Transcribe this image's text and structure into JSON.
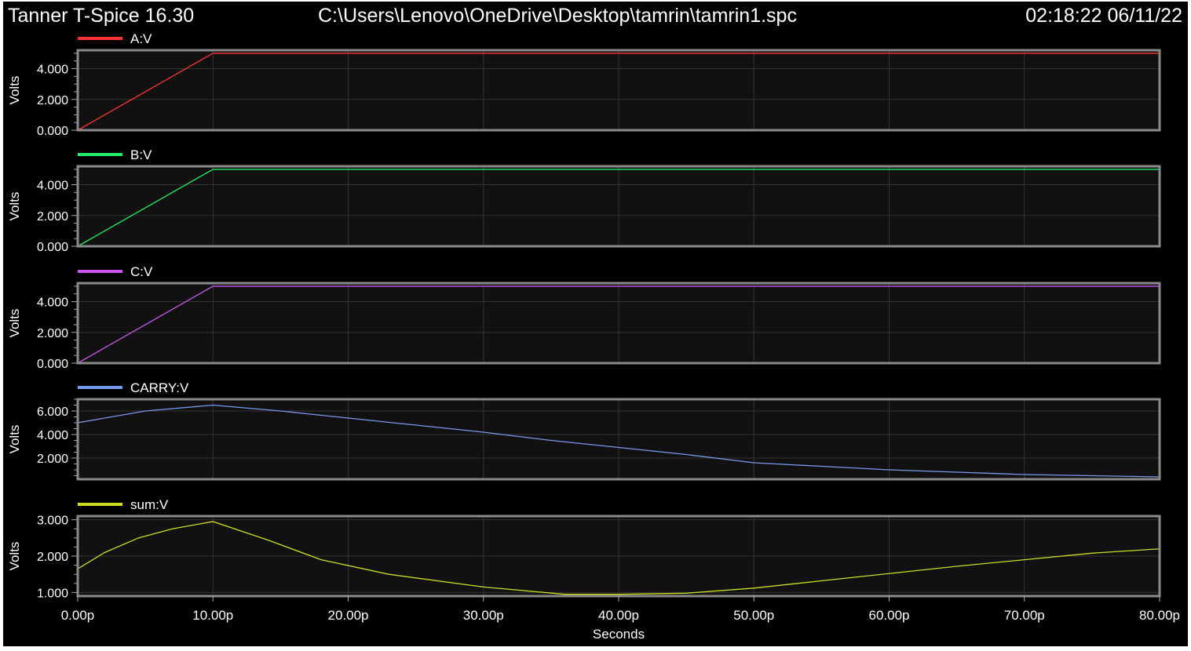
{
  "header": {
    "app_title": "Tanner T-Spice 16.30",
    "file_path": "C:\\Users\\Lenovo\\OneDrive\\Desktop\\tamrin\\tamrin1.spc",
    "timestamp": "02:18:22 06/11/22"
  },
  "chart_data": [
    {
      "type": "line",
      "series": [
        {
          "name": "A:V",
          "color": "#ff3333",
          "x": [
            0,
            10,
            80
          ],
          "y": [
            0,
            5.0,
            5.0
          ]
        }
      ],
      "ylabel": "Volts",
      "ylim": [
        0,
        5.2
      ],
      "yticks": [
        0,
        2,
        4
      ],
      "ytick_labels": [
        "0.000",
        "2.000",
        "4.000"
      ],
      "xlim": [
        0,
        80
      ],
      "grid": true
    },
    {
      "type": "line",
      "series": [
        {
          "name": "B:V",
          "color": "#22ee66",
          "x": [
            0,
            10,
            80
          ],
          "y": [
            0,
            5.0,
            5.0
          ]
        }
      ],
      "ylabel": "Volts",
      "ylim": [
        0,
        5.2
      ],
      "yticks": [
        0,
        2,
        4
      ],
      "ytick_labels": [
        "0.000",
        "2.000",
        "4.000"
      ],
      "xlim": [
        0,
        80
      ],
      "grid": true
    },
    {
      "type": "line",
      "series": [
        {
          "name": "C:V",
          "color": "#cc55ee",
          "x": [
            0,
            10,
            80
          ],
          "y": [
            0,
            5.0,
            5.0
          ]
        }
      ],
      "ylabel": "Volts",
      "ylim": [
        0,
        5.2
      ],
      "yticks": [
        0,
        2,
        4
      ],
      "ytick_labels": [
        "0.000",
        "2.000",
        "4.000"
      ],
      "xlim": [
        0,
        80
      ],
      "grid": true
    },
    {
      "type": "line",
      "series": [
        {
          "name": "CARRY:V",
          "color": "#7799ee",
          "x": [
            0,
            5,
            10,
            15,
            20,
            25,
            30,
            35,
            40,
            45,
            50,
            55,
            60,
            65,
            70,
            75,
            80
          ],
          "y": [
            5.0,
            6.0,
            6.5,
            6.0,
            5.4,
            4.8,
            4.2,
            3.5,
            2.9,
            2.3,
            1.6,
            1.3,
            1.0,
            0.8,
            0.6,
            0.5,
            0.4
          ]
        }
      ],
      "ylabel": "Volts",
      "ylim": [
        0.2,
        7.0
      ],
      "yticks": [
        2,
        4,
        6
      ],
      "ytick_labels": [
        "2.000",
        "4.000",
        "6.000"
      ],
      "xlim": [
        0,
        80
      ],
      "grid": true
    },
    {
      "type": "line",
      "series": [
        {
          "name": "sum:V",
          "color": "#ccdd22",
          "x": [
            0,
            2,
            4.5,
            7,
            10,
            14,
            18,
            23,
            30,
            36,
            40,
            45,
            50,
            55,
            60,
            65,
            70,
            75,
            80
          ],
          "y": [
            1.65,
            2.1,
            2.5,
            2.75,
            2.95,
            2.45,
            1.9,
            1.5,
            1.15,
            0.95,
            0.95,
            0.98,
            1.12,
            1.32,
            1.52,
            1.72,
            1.9,
            2.08,
            2.2
          ]
        }
      ],
      "ylabel": "Volts",
      "ylim": [
        0.9,
        3.1
      ],
      "yticks": [
        1,
        2,
        3
      ],
      "ytick_labels": [
        "1.000",
        "2.000",
        "3.000"
      ],
      "xlim": [
        0,
        80
      ],
      "xticks": [
        0,
        10,
        20,
        30,
        40,
        50,
        60,
        70,
        80
      ],
      "xtick_labels": [
        "0.00p",
        "10.00p",
        "20.00p",
        "30.00p",
        "40.00p",
        "50.00p",
        "60.00p",
        "70.00p",
        "80.00p"
      ],
      "xlabel": "Seconds",
      "grid": true
    }
  ]
}
